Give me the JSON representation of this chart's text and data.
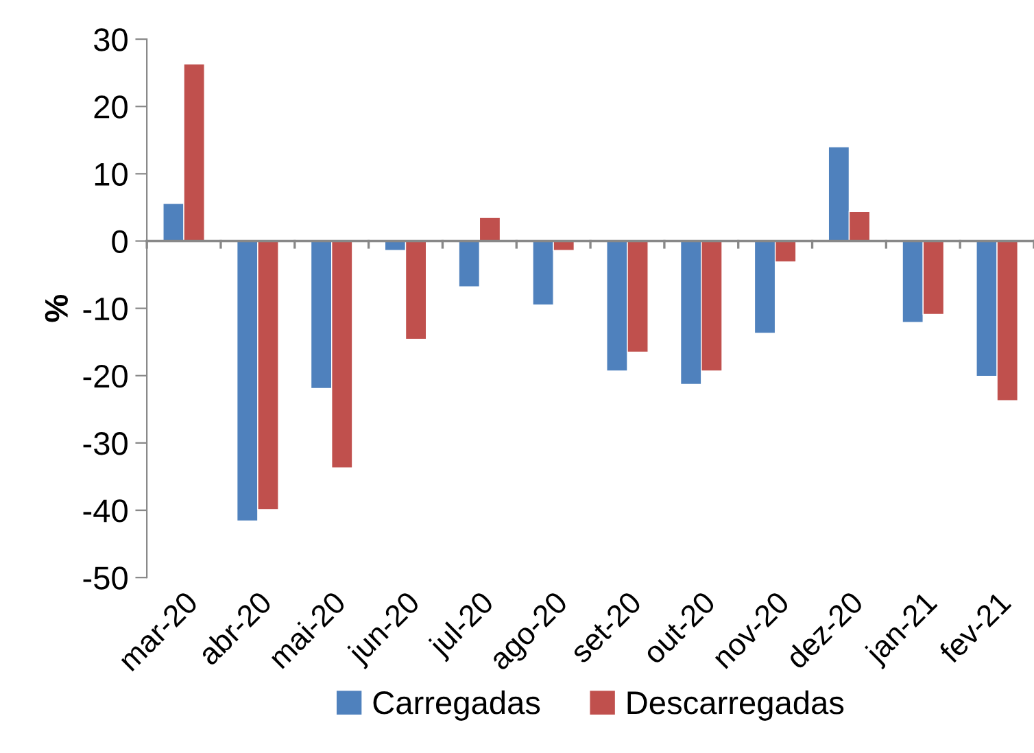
{
  "chart_data": {
    "type": "bar",
    "ylabel": "%",
    "categories": [
      "mar-20",
      "abr-20",
      "mai-20",
      "jun-20",
      "jul-20",
      "ago-20",
      "set-20",
      "out-20",
      "nov-20",
      "dez-20",
      "jan-21",
      "fev-21"
    ],
    "series": [
      {
        "name": "Carregadas",
        "color": "#4f81bd",
        "values": [
          5.6,
          -41.6,
          -21.9,
          -1.4,
          -6.8,
          -9.5,
          -19.3,
          -21.3,
          -13.7,
          14.0,
          -12.1,
          -20.1
        ]
      },
      {
        "name": "Descarregadas",
        "color": "#c0504d",
        "values": [
          26.3,
          -39.9,
          -33.7,
          -14.6,
          3.5,
          -1.4,
          -16.5,
          -19.3,
          -3.1,
          4.4,
          -10.9,
          -23.7
        ]
      }
    ],
    "ylim": [
      -50,
      30
    ],
    "yticks": [
      -50,
      -40,
      -30,
      -20,
      -10,
      0,
      10,
      20,
      30
    ],
    "legend": "bottom"
  }
}
